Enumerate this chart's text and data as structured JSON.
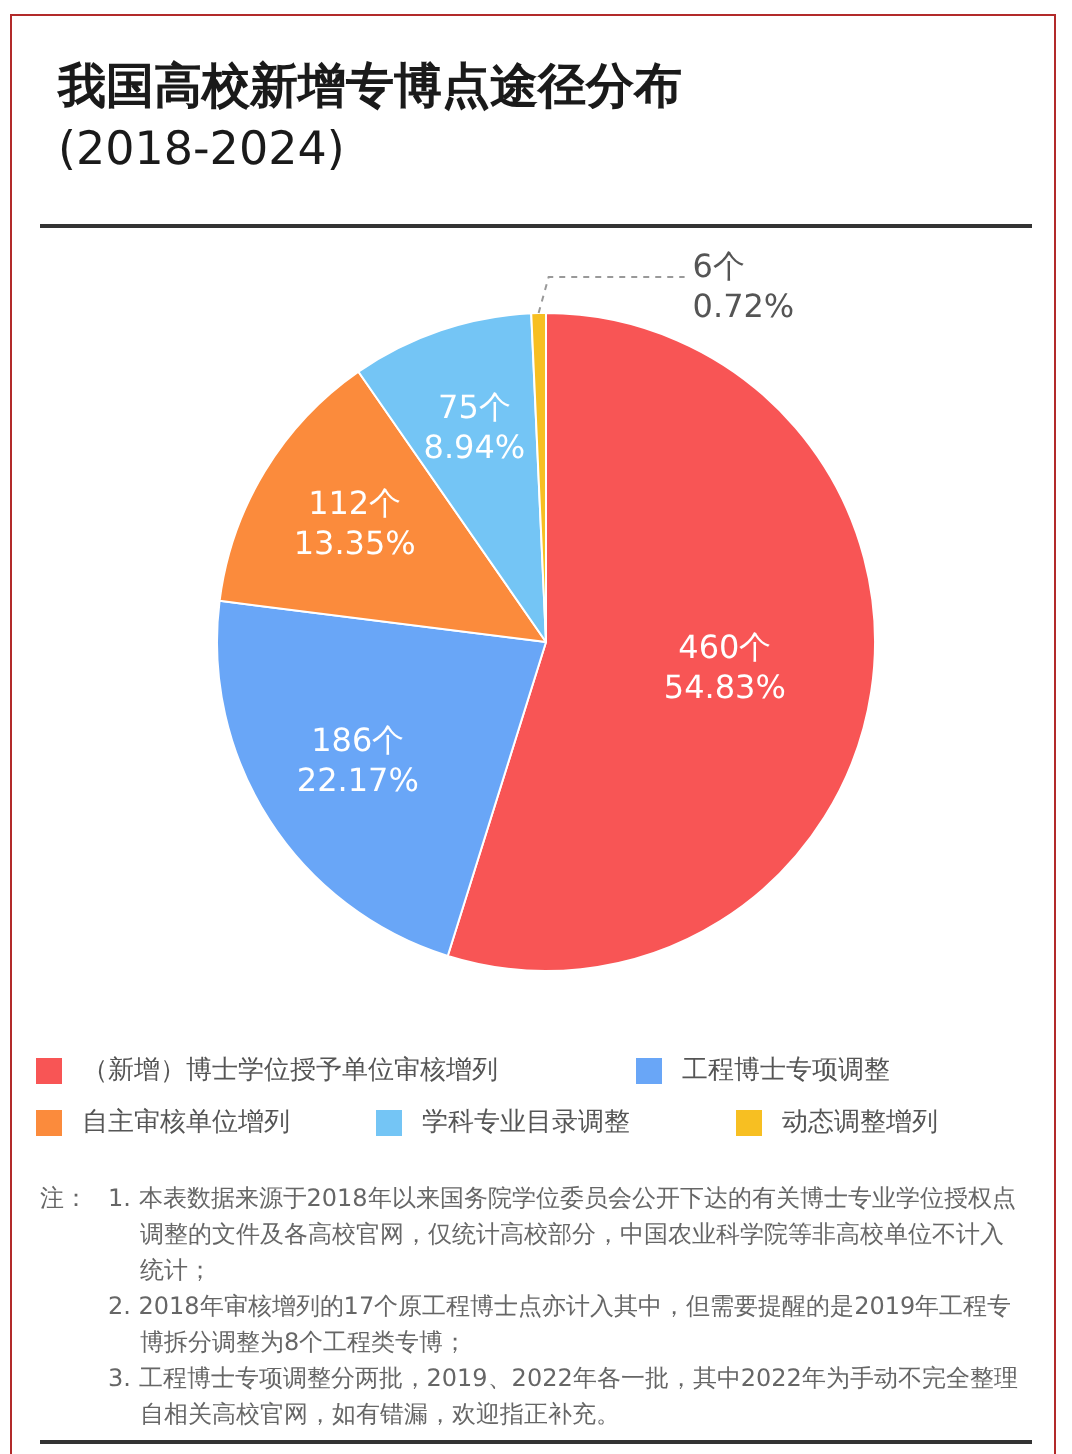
{
  "chart_data": {
    "type": "pie",
    "title": "我国高校新增专博点途径分布",
    "subtitle": "(2018-2024)",
    "categories": [
      "（新增）博士学位授予单位审核增列",
      "工程博士专项调整",
      "自主审核单位增列",
      "学科专业目录调整",
      "动态调整增列"
    ],
    "values": [
      460,
      186,
      112,
      75,
      6
    ],
    "colors": [
      "#f85555",
      "#69a6f7",
      "#fb8b3c",
      "#74c5f5",
      "#f7bf22"
    ],
    "value_labels": [
      "460个\n54.83%",
      "186个\n22.17%",
      "112个\n13.35%",
      "75个\n8.94%",
      "6个\n0.72%"
    ],
    "legend": "bottom",
    "annotations": [
      "注：",
      "1. 本表数据来源于2018年以来国务院学位委员会公开下达的有关博士专业学位授权点调整的文件及各高校官网，仅统计高校部分，中国农业科学院等非高校单位不计入统计；",
      "2. 2018年审核增列的17个原工程博士点亦计入其中，但需要提醒的是2019年工程专博拆分调整为8个工程类专博；",
      "3. 工程博士专项调整分两批，2019、2022年各一批，其中2022年为手动不完全整理自相关高校官网，如有错漏，欢迎指正补充。"
    ]
  }
}
